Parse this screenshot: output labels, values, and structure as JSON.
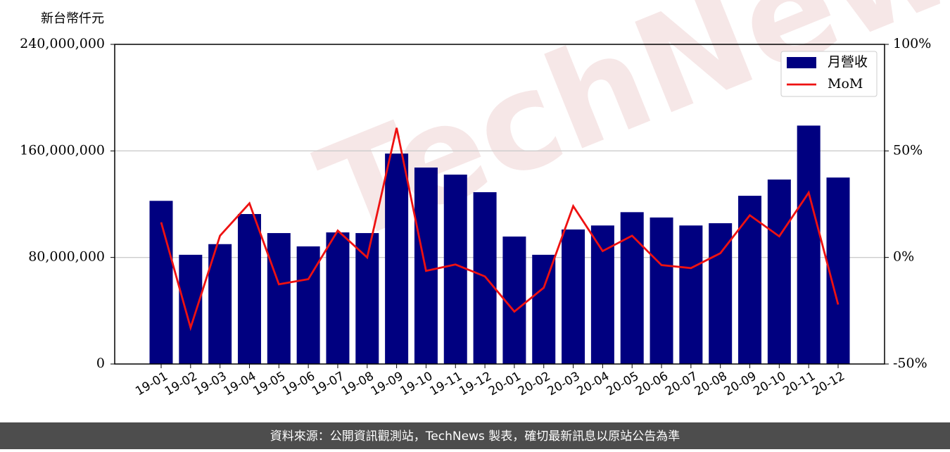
{
  "chart_data": {
    "type": "bar_line",
    "y_label": "新台幣仟元",
    "watermark": "TechNews",
    "footer": "資料來源：公開資訊觀測站，TechNews 製表，確切最新訊息以原站公告為準",
    "categories": [
      "19-01",
      "19-02",
      "19-03",
      "19-04",
      "19-05",
      "19-06",
      "19-07",
      "19-08",
      "19-09",
      "19-10",
      "19-11",
      "19-12",
      "20-01",
      "20-02",
      "20-03",
      "20-04",
      "20-05",
      "20-06",
      "20-07",
      "20-08",
      "20-09",
      "20-10",
      "20-11",
      "20-12"
    ],
    "series": [
      {
        "name": "月營收",
        "type": "bar",
        "color": "#000080",
        "values": [
          122500000,
          82000000,
          90000000,
          112600000,
          98300000,
          88300000,
          98800000,
          98300000,
          158000000,
          147500000,
          142200000,
          129000000,
          95700000,
          82000000,
          101000000,
          104000000,
          114000000,
          110000000,
          104000000,
          105700000,
          126300000,
          138500000,
          179000000,
          140000000
        ]
      },
      {
        "name": "MoM",
        "type": "line",
        "axis": "y2",
        "color": "#ee1111",
        "values": [
          16.5,
          -33,
          10.2,
          25.4,
          -12.6,
          -10.2,
          12.6,
          0,
          60.8,
          -6.3,
          -3.3,
          -8.9,
          -25.4,
          -14.2,
          24.1,
          3,
          10.2,
          -3.6,
          -5,
          2,
          19.8,
          9.9,
          30.4,
          -22.1
        ]
      }
    ],
    "ylim": [
      0,
      240000000
    ],
    "yticks": [
      0,
      {
        "value": 80000000,
        "label": "80,000,000"
      },
      {
        "value": 160000000,
        "label": "160,000,000"
      },
      {
        "value": 240000000,
        "label": "240,000,000"
      }
    ],
    "y2lim": [
      -50,
      100
    ],
    "y2ticks": [
      {
        "value": -50,
        "label": "-50%"
      },
      {
        "value": 0,
        "label": "0%"
      },
      {
        "value": 50,
        "label": "50%"
      },
      {
        "value": 100,
        "label": "100%"
      }
    ],
    "grid": true,
    "legend": "upper right"
  }
}
